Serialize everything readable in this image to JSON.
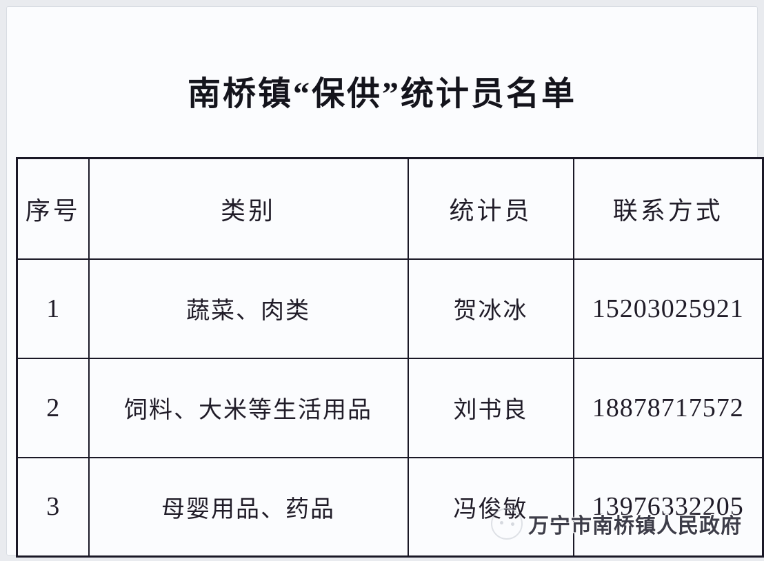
{
  "page": {
    "title": "南桥镇“保供”统计员名单"
  },
  "table": {
    "headers": [
      "序号",
      "类别",
      "统计员",
      "联系方式"
    ],
    "rows": [
      {
        "no": "1",
        "category": "蔬菜、肉类",
        "statistician": "贺冰冰",
        "phone": "15203025921"
      },
      {
        "no": "2",
        "category": "饲料、大米等生活用品",
        "statistician": "刘书良",
        "phone": "18878717572"
      },
      {
        "no": "3",
        "category": "母婴用品、药品",
        "statistician": "冯俊敏",
        "phone": "13976332205"
      }
    ]
  },
  "watermark": {
    "logo": "government-seal-icon",
    "text": "万宁市南桥镇人民政府"
  },
  "colors": {
    "table_border": "#1a1826",
    "page_background": "#fbfcfe",
    "outer_background": "#e9ebef",
    "text": "#201c28",
    "watermark_text": "#3d3d49"
  }
}
